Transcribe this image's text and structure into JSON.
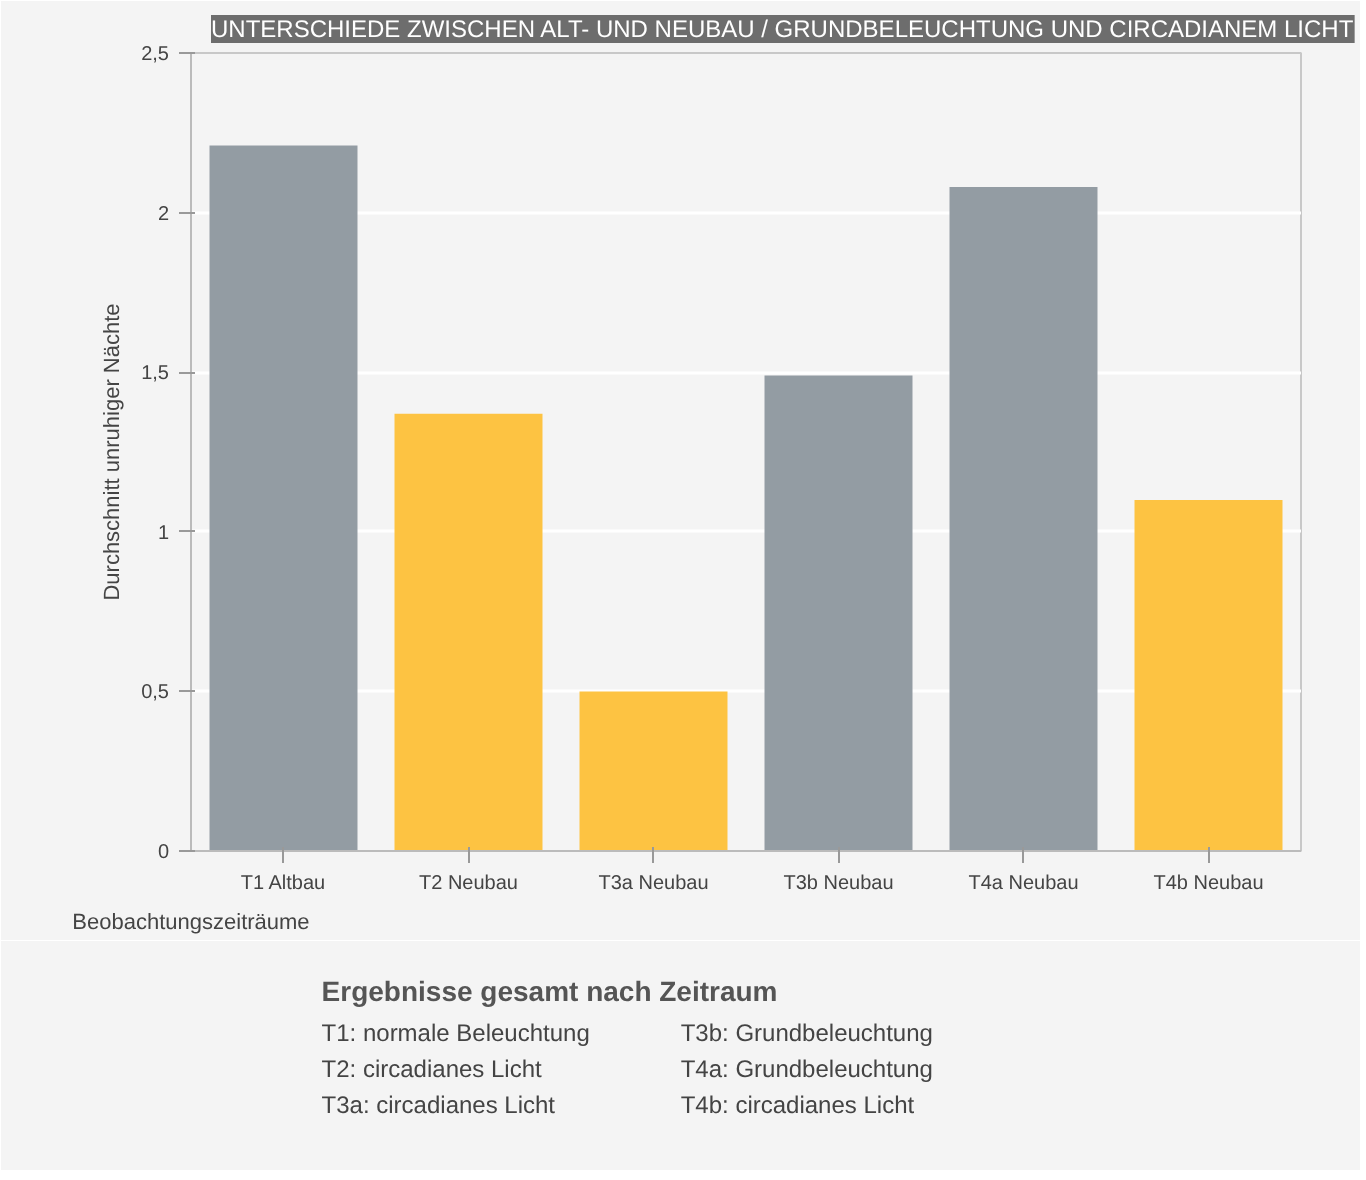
{
  "chart_data": {
    "type": "bar",
    "title": "UNTERSCHIEDE ZWISCHEN ALT- UND NEUBAU / GRUNDBELEUCHTUNG UND CIRCADIANEM LICHT",
    "xlabel": "Beobachtungszeiträume",
    "ylabel": "Durchschnitt unruhiger Nächte",
    "categories": [
      "T1 Altbau",
      "T2 Neubau",
      "T3a Neubau",
      "T3b Neubau",
      "T4a Neubau",
      "T4b Neubau"
    ],
    "values": [
      2.21,
      1.37,
      0.5,
      1.49,
      2.08,
      1.1
    ],
    "colors": [
      "#939ca3",
      "#fdc342",
      "#fdc342",
      "#939ca3",
      "#939ca3",
      "#fdc342"
    ],
    "ylim": [
      0,
      2.5
    ],
    "yticks": [
      {
        "value": 0,
        "label": "0"
      },
      {
        "value": 0.5,
        "label": "0,5"
      },
      {
        "value": 1,
        "label": "1"
      },
      {
        "value": 1.5,
        "label": "1,5"
      },
      {
        "value": 2,
        "label": "2"
      },
      {
        "value": 2.5,
        "label": "2,5"
      }
    ],
    "grid": "y",
    "annotations": [
      "Ergebnisse gesamt nach Zeitraum",
      "T1: normale Beleuchtung",
      "T2: circadianes Licht",
      "T3a: circadianes Licht",
      "T3b: Grundbeleuchtung",
      "T4a: Grundbeleuchtung",
      "T4b: circadianes Licht"
    ]
  }
}
